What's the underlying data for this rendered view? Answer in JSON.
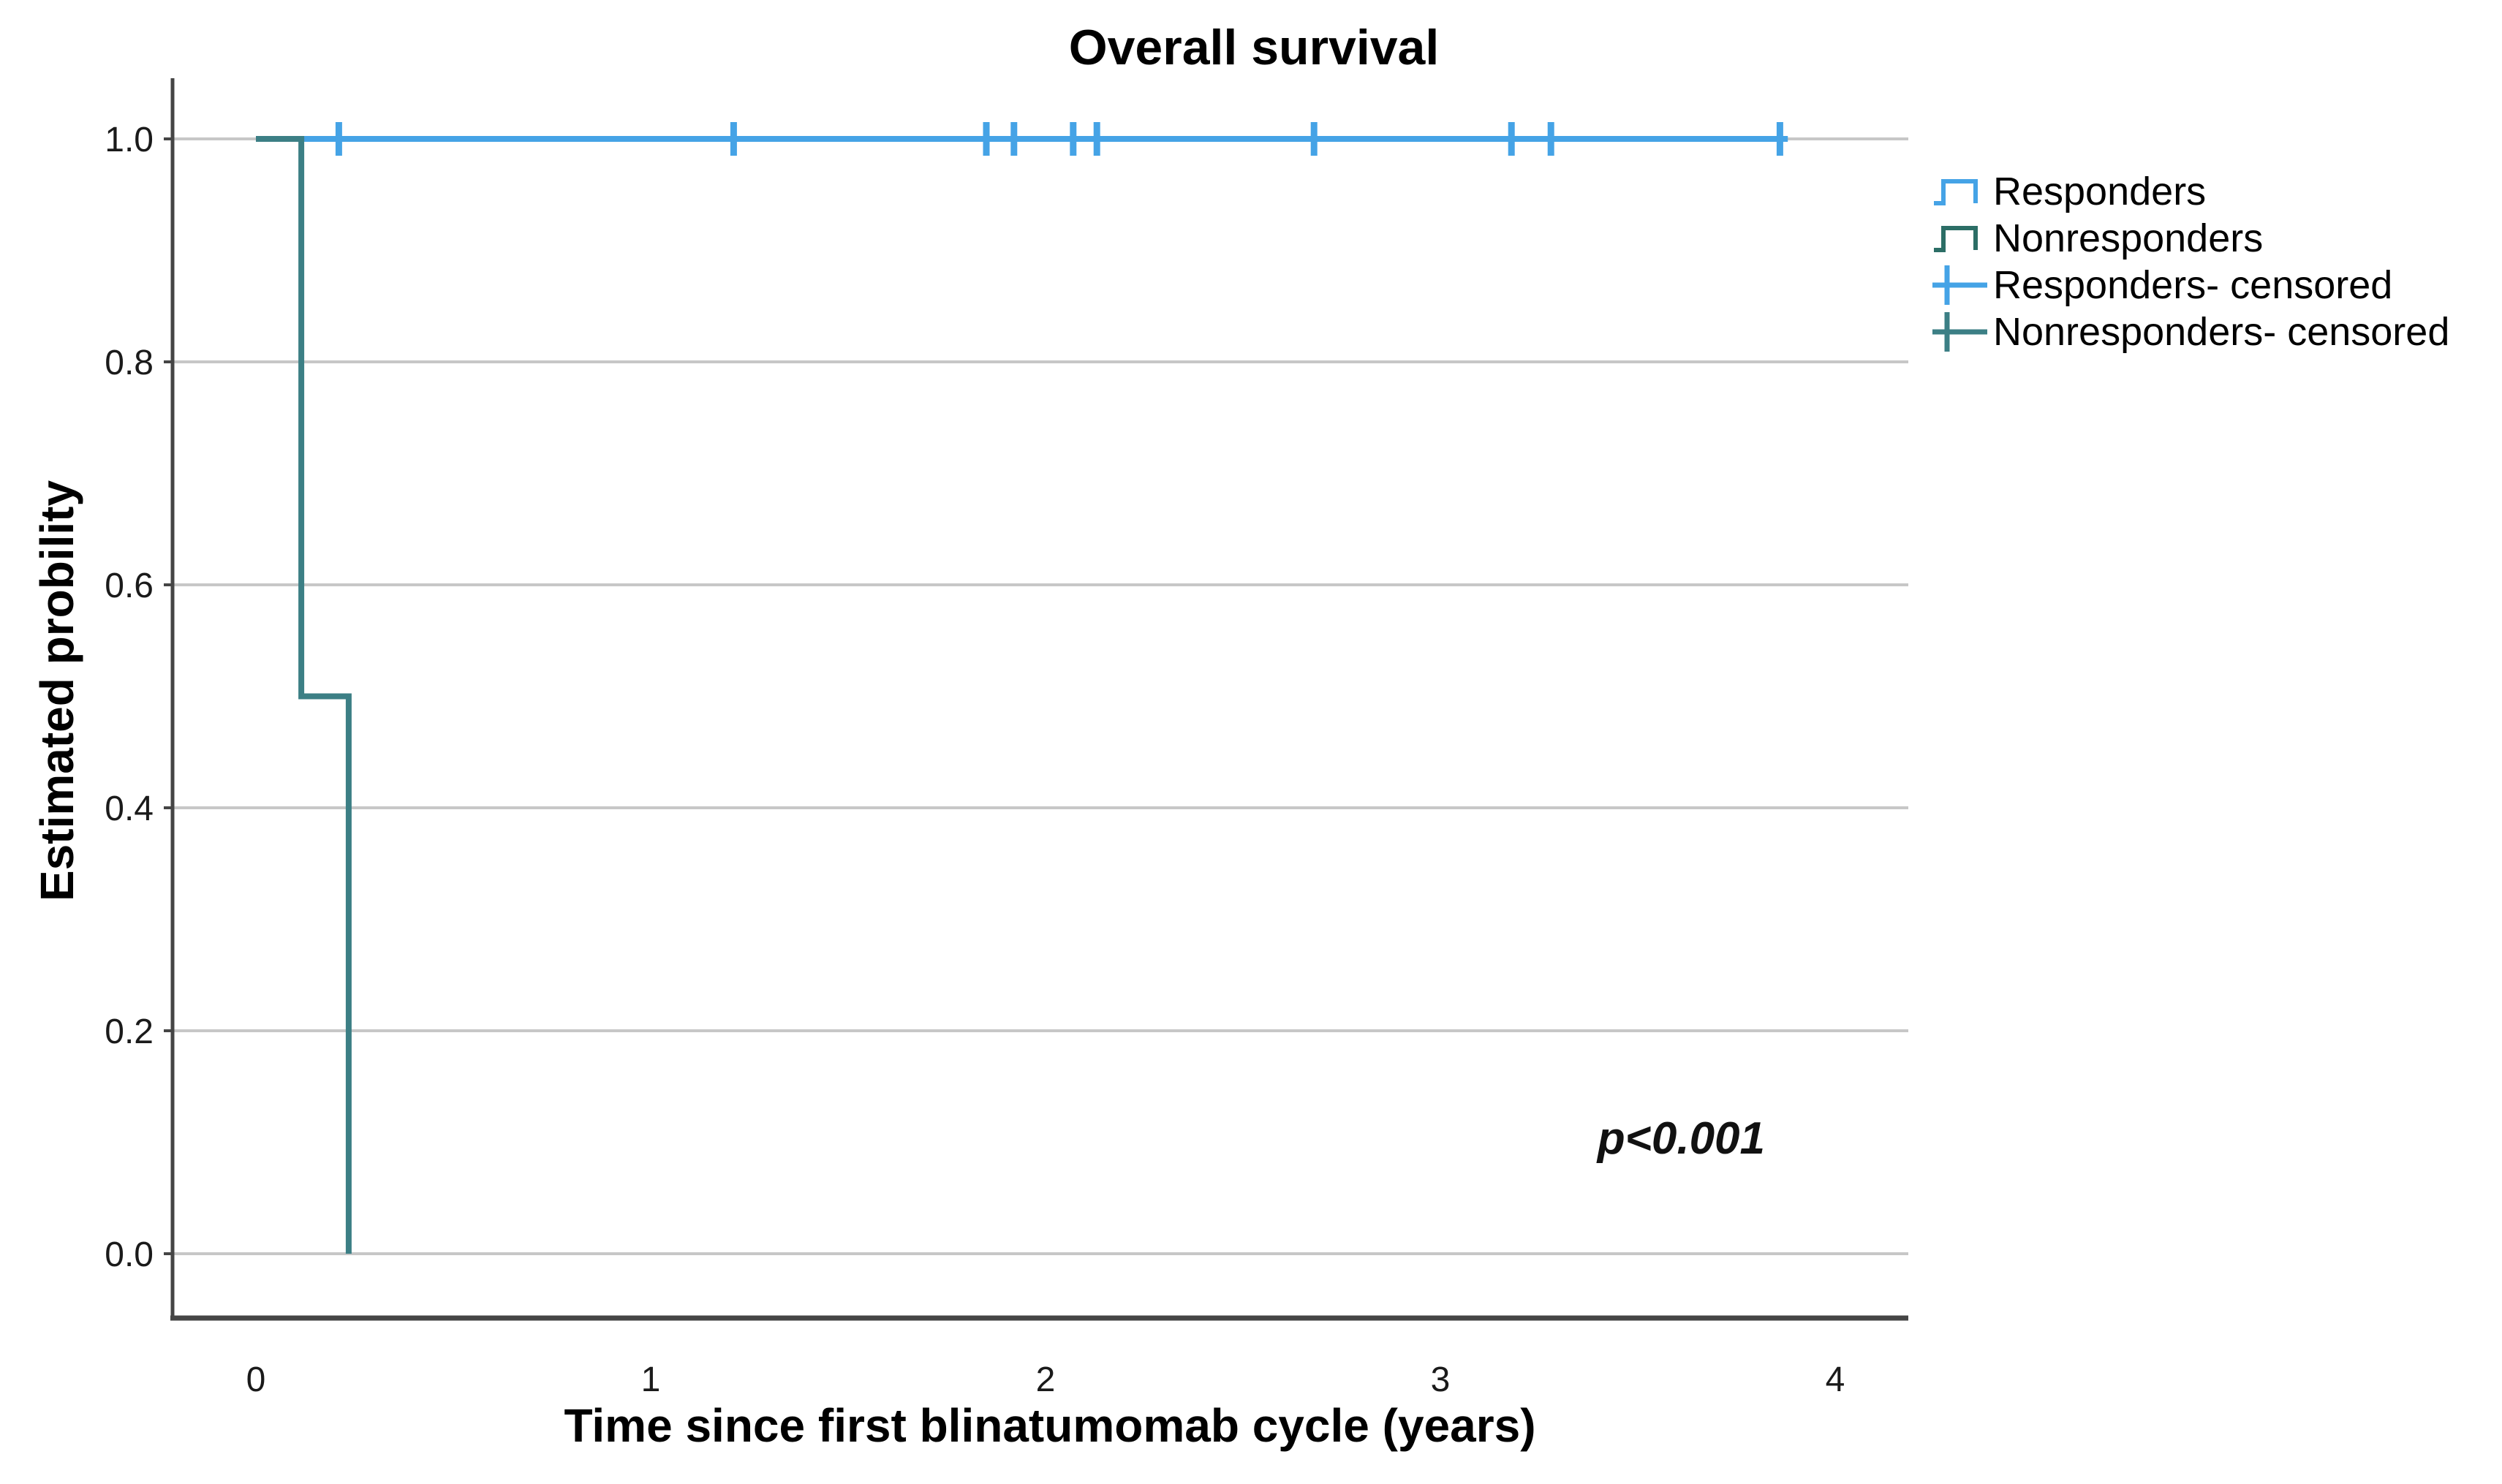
{
  "figure": {
    "background": "#ffffff"
  },
  "chart_data": {
    "type": "line",
    "subtype": "kaplan-meier-step",
    "title": "Overall survival",
    "xlabel": "Time since first blinatumomab cycle (years)",
    "ylabel": "Estimated probility",
    "annotation": {
      "text": "p<0.001",
      "x": 3.61,
      "y": 0.09
    },
    "xlim": [
      -0.21,
      4.19
    ],
    "ylim": [
      0.0,
      1.0
    ],
    "xticks": [
      "0",
      "1",
      "2",
      "3",
      "4"
    ],
    "yticks": [
      "0.0",
      "0.2",
      "0.4",
      "0.6",
      "0.8",
      "1.0"
    ],
    "grid": "horizontal",
    "legend_position": "right",
    "colors": {
      "grid": "#C7C7C7",
      "axis": "#454545",
      "responders": "#45A3E6",
      "nonresponders": "#3C7F85"
    },
    "series": [
      {
        "name": "Responders",
        "color": "#45A3E6",
        "steps": [
          [
            0,
            1.0
          ],
          [
            3.88,
            1.0
          ]
        ],
        "censored": [
          0.21,
          1.21,
          1.85,
          1.92,
          2.07,
          2.13,
          2.68,
          3.18,
          3.28,
          3.86
        ]
      },
      {
        "name": "Nonresponders",
        "color": "#3C7F85",
        "steps": [
          [
            0,
            1.0
          ],
          [
            0.115,
            1.0
          ],
          [
            0.115,
            0.5
          ],
          [
            0.235,
            0.5
          ],
          [
            0.235,
            0.0
          ]
        ],
        "censored": []
      }
    ],
    "legend": [
      {
        "label": "Responders",
        "symbol": "step",
        "color": "#45A3E6"
      },
      {
        "label": "Nonresponders",
        "symbol": "step",
        "color": "#2C6E66"
      },
      {
        "label": "Responders- censored",
        "symbol": "plus",
        "color": "#45A3E6"
      },
      {
        "label": "Nonresponders- censored",
        "symbol": "plus",
        "color": "#3C7F85"
      }
    ]
  }
}
